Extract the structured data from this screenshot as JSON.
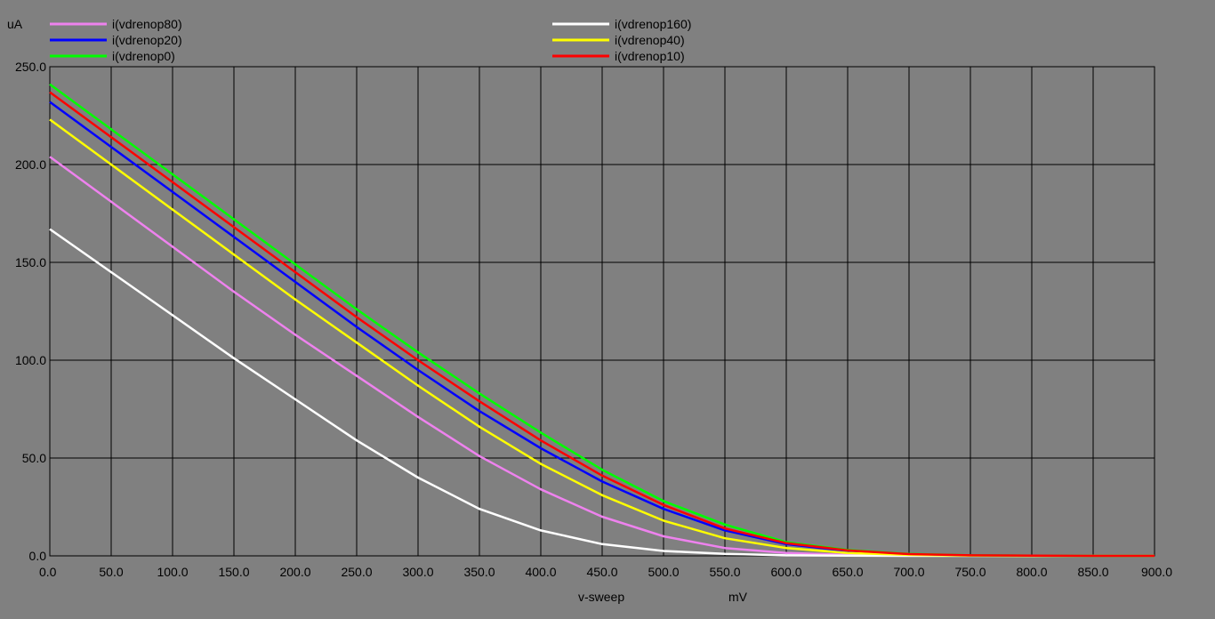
{
  "chart_data": {
    "type": "line",
    "title": "",
    "xlabel": "v-sweep",
    "xunit": "mV",
    "ylabel": "uA",
    "xlim": [
      0,
      900
    ],
    "ylim": [
      0,
      250
    ],
    "grid": true,
    "legend_position": "top",
    "x_ticks": [
      "0.0",
      "50.0",
      "100.0",
      "150.0",
      "200.0",
      "250.0",
      "300.0",
      "350.0",
      "400.0",
      "450.0",
      "500.0",
      "550.0",
      "600.0",
      "650.0",
      "700.0",
      "750.0",
      "800.0",
      "850.0",
      "900.0"
    ],
    "y_ticks": [
      "0.0",
      "50.0",
      "100.0",
      "150.0",
      "200.0",
      "250.0"
    ],
    "x": [
      0,
      50,
      100,
      150,
      200,
      250,
      300,
      350,
      400,
      450,
      500,
      550,
      600,
      650,
      700,
      750,
      800,
      850,
      900
    ],
    "series": [
      {
        "name": "i(vdrenop80)",
        "color": "#ee82ee",
        "values": [
          204,
          181,
          158,
          135,
          113,
          92,
          71,
          51,
          34,
          20,
          10,
          4,
          1.5,
          0.5,
          0.2,
          0.1,
          0,
          0,
          0
        ]
      },
      {
        "name": "i(vdrenop160)",
        "color": "#ffffff",
        "values": [
          167,
          145,
          123,
          101,
          80,
          59,
          40,
          24,
          13,
          6,
          2.5,
          1,
          0.3,
          0.1,
          0,
          0,
          0,
          0,
          0
        ]
      },
      {
        "name": "i(vdrenop20)",
        "color": "#0000ff",
        "values": [
          232,
          209,
          186,
          163,
          140,
          117,
          95,
          74,
          55,
          38,
          24,
          13,
          6,
          2.5,
          0.8,
          0.2,
          0.1,
          0,
          0
        ]
      },
      {
        "name": "i(vdrenop40)",
        "color": "#ffff00",
        "values": [
          223,
          200,
          177,
          154,
          131,
          109,
          87,
          66,
          47,
          31,
          18,
          9,
          4,
          1.5,
          0.5,
          0.1,
          0,
          0,
          0
        ]
      },
      {
        "name": "i(vdrenop0)",
        "color": "#00ff00",
        "values": [
          241,
          218,
          195,
          172,
          149,
          126,
          104,
          83,
          63,
          44,
          28,
          16,
          7,
          3,
          1,
          0.3,
          0.1,
          0,
          0
        ]
      },
      {
        "name": "i(vdrenop10)",
        "color": "#ff0000",
        "values": [
          237,
          214,
          191,
          168,
          145,
          122,
          100,
          79,
          59,
          41,
          26,
          14,
          6.5,
          2.8,
          0.9,
          0.3,
          0.1,
          0,
          0
        ]
      }
    ]
  }
}
